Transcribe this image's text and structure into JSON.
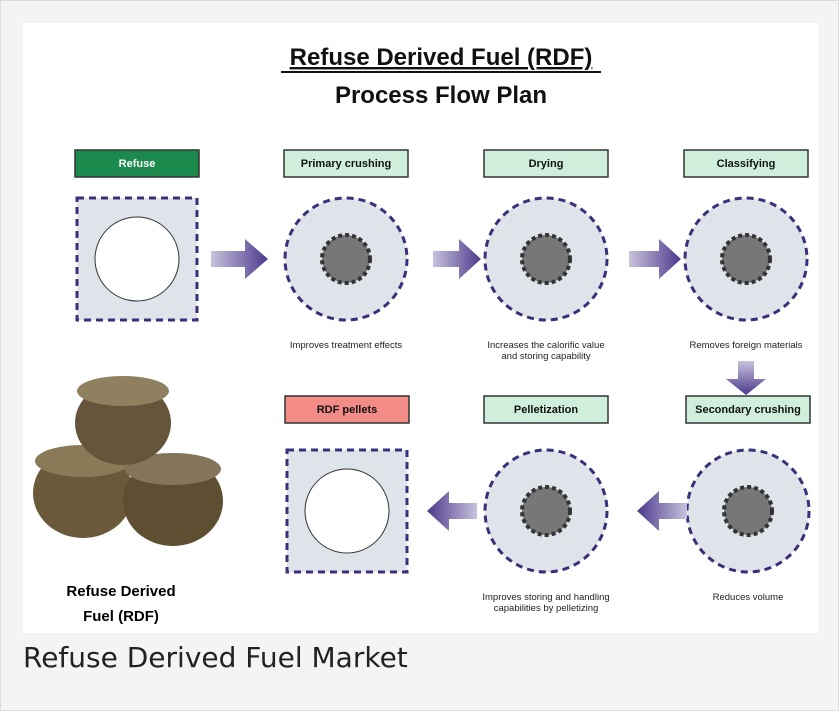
{
  "title": "Refuse Derived Fuel (RDF)",
  "subtitle": "Process Flow Plan",
  "steps": [
    {
      "label": "Refuse",
      "description": []
    },
    {
      "label": "Primary crushing",
      "description": [
        "Improves treatment effects"
      ]
    },
    {
      "label": "Drying",
      "description": [
        "Increases the calorific value",
        "and storing capability"
      ]
    },
    {
      "label": "Classifying",
      "description": [
        "Removes foreign materials"
      ]
    },
    {
      "label": "Secondary crushing",
      "description": [
        "Reduces volume"
      ]
    },
    {
      "label": "Pelletization",
      "description": [
        "Improves storing and handling",
        "capabilities by pelletizing"
      ]
    },
    {
      "label": "RDF pellets",
      "description": []
    }
  ],
  "photo_caption": [
    "Refuse Derived",
    "Fuel (RDF)"
  ],
  "caption": "Refuse Derived Fuel Market"
}
